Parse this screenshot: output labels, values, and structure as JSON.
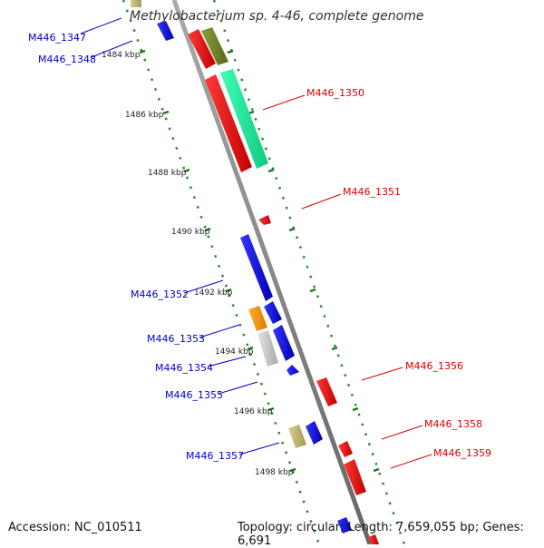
{
  "title": "Methylobacterium sp. 4-46, complete genome",
  "footer": {
    "accession_label": "Accession:",
    "accession": "NC_010511",
    "topology_label": "Topology:",
    "topology": "circular;",
    "length_label": "Length:",
    "length": "7,659,055 bp;",
    "genes_label": "Genes:",
    "genes": "6,691"
  },
  "colors": {
    "forward_strand": "#0000dd",
    "reverse_strand": "#dd0000",
    "backbone": "#888888",
    "tick": "#228b22"
  },
  "kbp_ticks": [
    "1484 kbp",
    "1486 kbp",
    "1488 kbp",
    "1490 kbp",
    "1492 kbp",
    "1494 kbp",
    "1496 kbp",
    "1498 kbp"
  ],
  "gene_labels": [
    {
      "text": "M446_1347",
      "strand": "forward"
    },
    {
      "text": "M446_1348",
      "strand": "forward"
    },
    {
      "text": "M446_1350",
      "strand": "reverse"
    },
    {
      "text": "M446_1351",
      "strand": "reverse"
    },
    {
      "text": "M446_1352",
      "strand": "forward"
    },
    {
      "text": "M446_1353",
      "strand": "forward"
    },
    {
      "text": "M446_1354",
      "strand": "forward"
    },
    {
      "text": "M446_1355",
      "strand": "forward"
    },
    {
      "text": "M446_1356",
      "strand": "reverse"
    },
    {
      "text": "M446_1357",
      "strand": "forward"
    },
    {
      "text": "M446_1358",
      "strand": "reverse"
    },
    {
      "text": "M446_1359",
      "strand": "reverse"
    }
  ]
}
